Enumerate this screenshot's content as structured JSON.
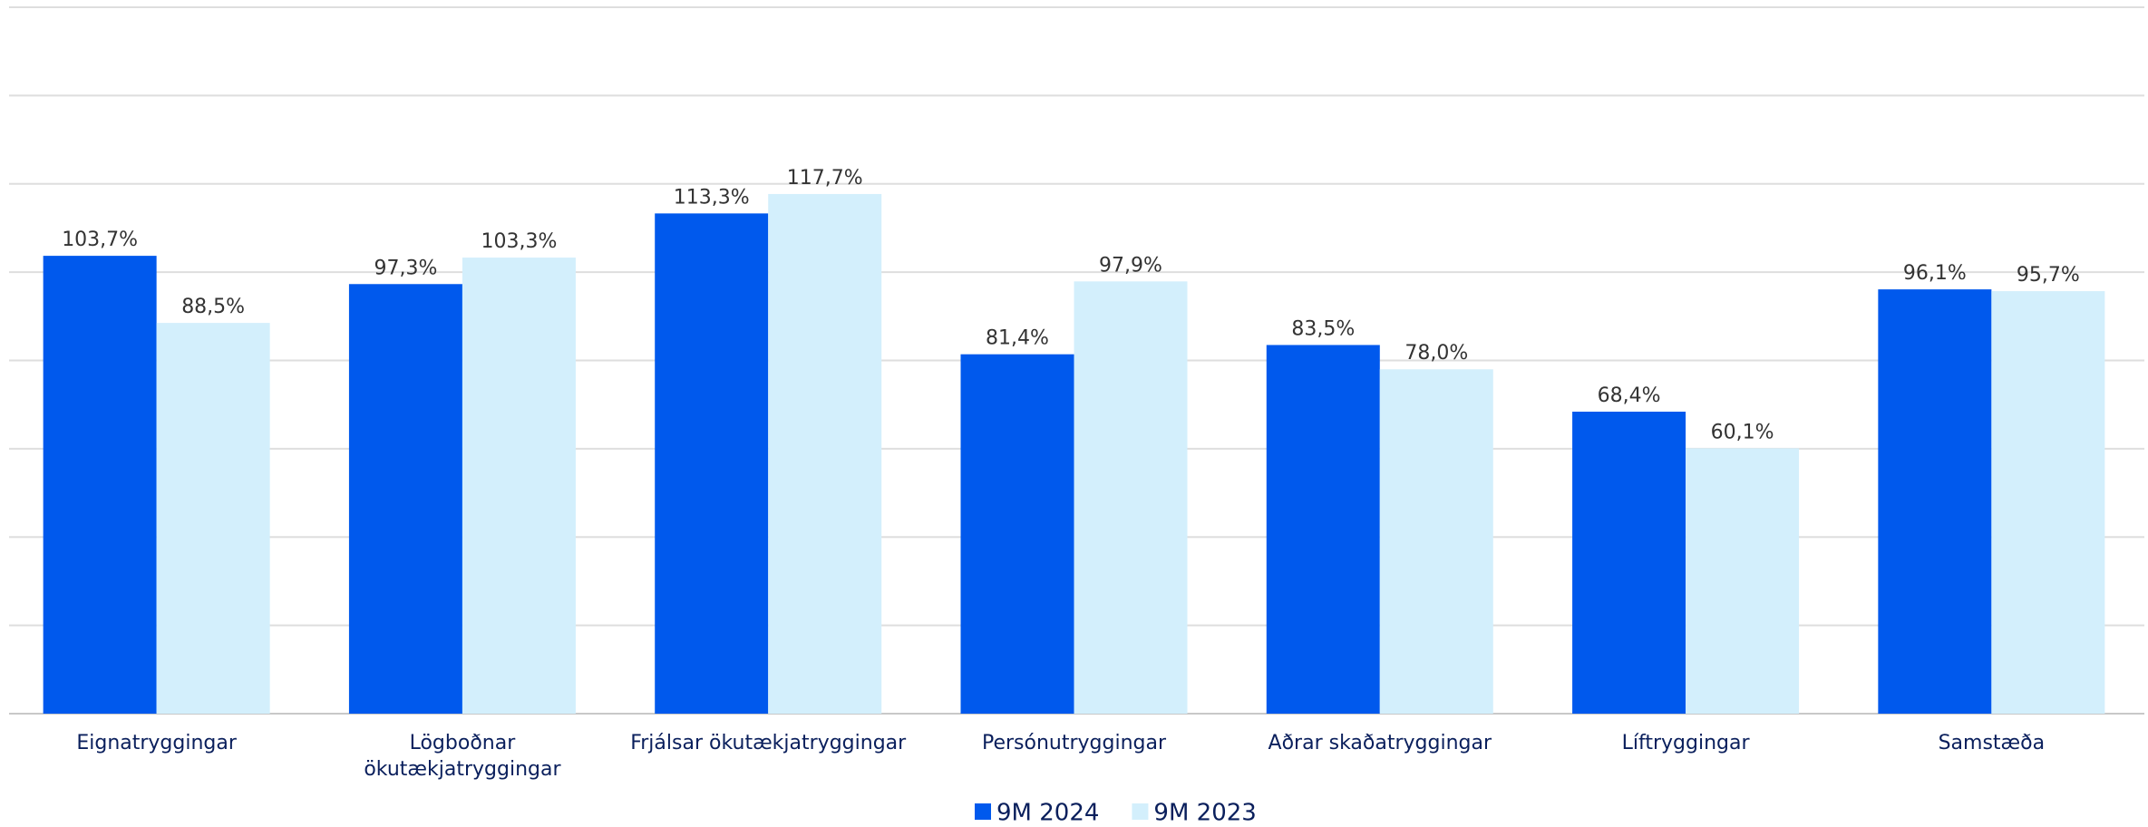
{
  "chart_data": {
    "type": "bar",
    "categories": [
      "Eignatryggingar",
      "Lögboðnar ökutækjatryggingar",
      "Frjálsar ökutækjatryggingar",
      "Persónutryggingar",
      "Aðrar skaðatryggingar",
      "Líftryggingar",
      "Samstæða"
    ],
    "series": [
      {
        "name": "9M 2024",
        "color": "#0059ed",
        "values": [
          103.7,
          97.3,
          113.3,
          81.4,
          83.5,
          68.4,
          96.1
        ],
        "value_labels": [
          "103,7%",
          "97,3%",
          "113,3%",
          "81,4%",
          "83,5%",
          "68,4%",
          "96,1%"
        ]
      },
      {
        "name": "9M 2023",
        "color": "#d3effc",
        "values": [
          88.5,
          103.3,
          117.7,
          97.9,
          78.0,
          60.1,
          95.7
        ],
        "value_labels": [
          "88,5%",
          "103,3%",
          "117,7%",
          "97,9%",
          "78,0%",
          "60,1%",
          "95,7%"
        ]
      }
    ],
    "ylim": [
      0,
      160
    ],
    "yticks": [
      0,
      20,
      40,
      60,
      80,
      100,
      120,
      140,
      160
    ],
    "grid": true,
    "legend": "bottom"
  }
}
